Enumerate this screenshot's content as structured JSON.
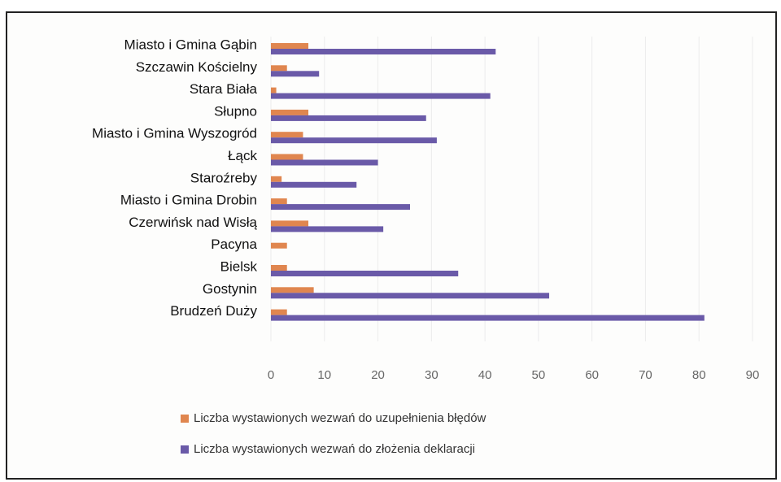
{
  "chart_data": {
    "type": "hbar",
    "categories": [
      "Miasto i Gmina Gąbin",
      "Szczawin Kościelny",
      "Stara Biała",
      "Słupno",
      "Miasto i Gmina Wyszogród",
      "Łąck",
      "Staroźreby",
      "Miasto i Gmina Drobin",
      "Czerwińsk nad Wisłą",
      "Pacyna",
      "Bielsk",
      "Gostynin",
      "Brudzeń Duży"
    ],
    "series": [
      {
        "name": "Liczba wystawionych wezwań do uzupełnienia  błędów",
        "color": "#e0864f",
        "values": [
          7,
          3,
          1,
          7,
          6,
          6,
          2,
          3,
          7,
          3,
          3,
          8,
          3
        ]
      },
      {
        "name": "Liczba wystawionych wezwań do złożenia deklaracji",
        "color": "#6a5aa8",
        "values": [
          42,
          9,
          41,
          29,
          31,
          20,
          16,
          26,
          21,
          null,
          35,
          52,
          81
        ]
      }
    ],
    "xlim": [
      0,
      90
    ],
    "xticks": [
      0,
      10,
      20,
      30,
      40,
      50,
      60,
      70,
      80,
      90
    ],
    "grid": true,
    "legend": "bottom"
  }
}
